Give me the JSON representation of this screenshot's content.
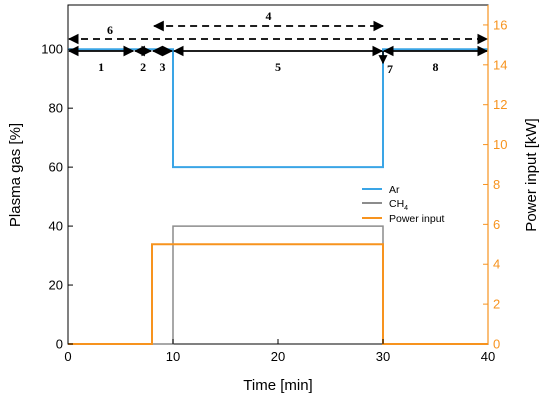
{
  "chart_data": {
    "type": "line",
    "xlabel": "Time [min]",
    "ylabel_left": "Plasma gas [%]",
    "ylabel_right": "Power input [kW]",
    "xlim": [
      0,
      40
    ],
    "ylim_left": [
      0,
      115
    ],
    "ylim_right": [
      0,
      17
    ],
    "x_ticks": [
      0,
      10,
      20,
      30,
      40
    ],
    "y_left_ticks": [
      0,
      20,
      40,
      60,
      80,
      100
    ],
    "y_right_ticks": [
      0,
      2,
      4,
      6,
      8,
      10,
      12,
      14,
      16
    ],
    "grid": false,
    "legend_position": "right-middle",
    "series": [
      {
        "name": "Ar",
        "axis": "left",
        "color": "#3aa5e6",
        "x": [
          0,
          10,
          10,
          30,
          30,
          40
        ],
        "y": [
          100,
          100,
          60,
          60,
          100,
          100
        ]
      },
      {
        "name": "CH",
        "name_subscript": "4",
        "axis": "left",
        "color": "#8c8c8c",
        "x": [
          0,
          10,
          10,
          30,
          30,
          40
        ],
        "y": [
          0,
          0,
          40,
          40,
          0,
          0
        ]
      },
      {
        "name": "Power input",
        "axis": "right",
        "color": "#f7931e",
        "x": [
          0,
          8,
          8,
          30,
          30,
          40
        ],
        "y": [
          0,
          0,
          5,
          5,
          0,
          0
        ]
      }
    ],
    "phases_solid": [
      {
        "label": "1",
        "x": [
          0,
          6.3
        ]
      },
      {
        "label": "2",
        "x": [
          6.3,
          8
        ]
      },
      {
        "label": "3",
        "x": [
          8,
          10
        ]
      },
      {
        "label": "5",
        "x": [
          10,
          30
        ]
      },
      {
        "label": "7",
        "x": [
          30,
          30
        ]
      },
      {
        "label": "8",
        "x": [
          30,
          40
        ]
      }
    ],
    "phases_dashed": [
      {
        "label": "6",
        "x": [
          0,
          40
        ]
      },
      {
        "label": "4",
        "x": [
          8.2,
          30
        ]
      }
    ]
  }
}
